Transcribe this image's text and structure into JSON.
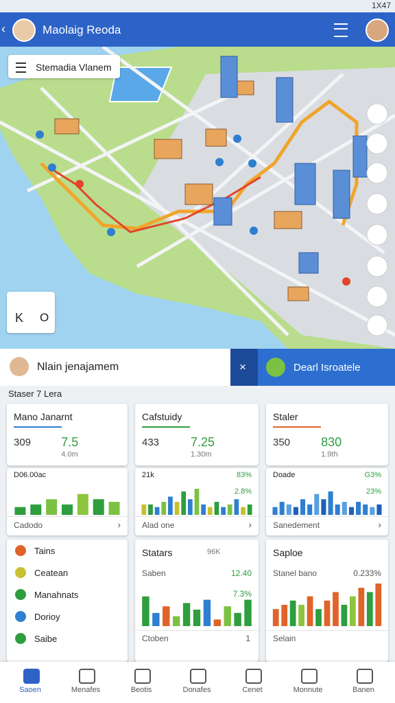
{
  "status_bar": {
    "time": "1X47"
  },
  "header": {
    "title": "Maolaig Reoda"
  },
  "map": {
    "search": "Stemadia Vlanem",
    "widget": [
      "K",
      "O"
    ]
  },
  "sheet": {
    "user": "Nlain jenajamem",
    "close": "×",
    "place": "Dearl Isroatele"
  },
  "section_label": "Staser 7 Lera",
  "stat_cards": [
    {
      "title": "Mano Janarnt",
      "left": "309",
      "right": "7.5",
      "sub": "4.0m"
    },
    {
      "title": "Cafstuidy",
      "left": "433",
      "right": "7.25",
      "sub": "1.30m"
    },
    {
      "title": "Staler",
      "left": "350",
      "right": "830",
      "sub": "1.9th"
    }
  ],
  "chart_cards": [
    {
      "label": "D06.00ac",
      "footer": "Cadodo",
      "ylim": [
        0,
        10
      ],
      "values": [
        3,
        4,
        6,
        4,
        8,
        6,
        5
      ],
      "palette": [
        "#2e9e3e",
        "#2e9e3e",
        "#7cc242",
        "#2e9e3e",
        "#8cc63f",
        "#2e9e3e",
        "#7cc242"
      ]
    },
    {
      "label": "21k",
      "value": "83%",
      "change": "2.8%",
      "footer": "Alad one",
      "ylim": [
        0,
        10
      ],
      "values": [
        4,
        4,
        3,
        5,
        7,
        5,
        9,
        6,
        10,
        4,
        3,
        5,
        3,
        4,
        6,
        3,
        4
      ],
      "palette": [
        "#c8c030",
        "#2e9e3e",
        "#2f7fd0",
        "#7cc242",
        "#2f7fd0"
      ]
    },
    {
      "label": "Doade",
      "value": "G3%",
      "change": "23%",
      "footer": "Sanedement",
      "ylim": [
        0,
        10
      ],
      "values": [
        3,
        5,
        4,
        3,
        6,
        4,
        8,
        6,
        9,
        4,
        5,
        3,
        5,
        4,
        3,
        4
      ],
      "palette": [
        "#2f7fd0",
        "#2f7fd0",
        "#5aa0e0",
        "#1f5fb8"
      ]
    }
  ],
  "list_card": {
    "items": [
      "Tains",
      "Ceatean",
      "Manahnats",
      "Dorioy",
      "Saibe"
    ]
  },
  "statars_card": {
    "title": "Statars",
    "badge": "96K",
    "label": "Saben",
    "value": "12.40",
    "change": "7.3%",
    "footer": "Ctoben",
    "count": "1",
    "ylim": [
      0,
      10
    ],
    "values": [
      9,
      4,
      6,
      3,
      7,
      5,
      8,
      2,
      6,
      4,
      8
    ],
    "palette": [
      "#2e9e3e",
      "#2f7fd0",
      "#e0632a",
      "#7cc242",
      "#2e9e3e"
    ]
  },
  "saploe_card": {
    "title": "Saploe",
    "label": "Stanel bano",
    "value": "0.233%",
    "footer": "Selain",
    "ylim": [
      0,
      10
    ],
    "values": [
      4,
      5,
      6,
      5,
      7,
      4,
      6,
      8,
      5,
      7,
      9,
      8,
      10
    ],
    "palette": [
      "#e0632a",
      "#e0632a",
      "#2e9e3e",
      "#8cc63f",
      "#e0632a",
      "#2e9e3e"
    ]
  },
  "nav": [
    "Saoen",
    "Menafes",
    "Beotis",
    "Donafes",
    "Cenet",
    "Monnute",
    "Banen"
  ]
}
